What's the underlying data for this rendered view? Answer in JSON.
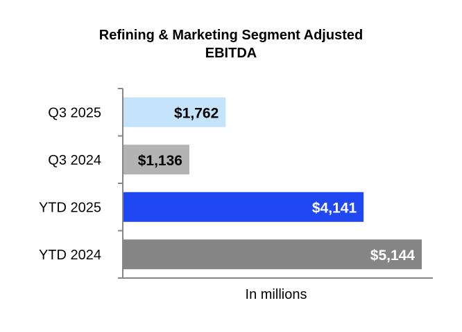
{
  "chart_data": {
    "type": "bar",
    "orientation": "horizontal",
    "title_lines": [
      "Refining & Marketing Segment Adjusted",
      "EBITDA"
    ],
    "categories": [
      "Q3 2025",
      "Q3 2024",
      "YTD 2025",
      "YTD 2024"
    ],
    "values": [
      1762,
      1136,
      4141,
      5144
    ],
    "data_labels": [
      "$1,762",
      "$1,136",
      "$4,141",
      "$5,144"
    ],
    "bar_colors": [
      "#c5e4fb",
      "#b3b3b3",
      "#1f47f2",
      "#858585"
    ],
    "label_colors": [
      "#000000",
      "#000000",
      "#ffffff",
      "#ffffff"
    ],
    "xlabel": "In millions",
    "ylabel": "",
    "xlim": [
      0,
      5500
    ],
    "grid": false,
    "legend": "none"
  }
}
